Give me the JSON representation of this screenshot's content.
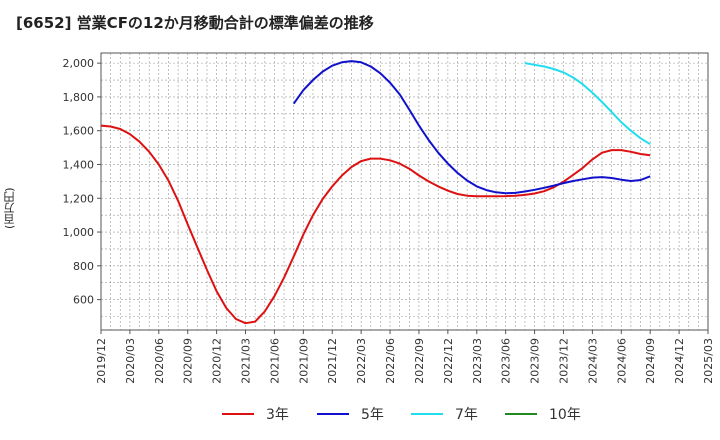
{
  "chart_data": {
    "type": "line",
    "title": "[6652]  営業CFの12か月移動合計の標準偏差の推移",
    "ylabel": "(百万円)",
    "ylim": [
      420,
      2060
    ],
    "y_ticks": [
      "600",
      "800",
      "1,000",
      "1,200",
      "1,400",
      "1,600",
      "1,800",
      "2,000"
    ],
    "x_ticks": [
      "2019/12",
      "2020/03",
      "2020/06",
      "2020/09",
      "2020/12",
      "2021/03",
      "2021/06",
      "2021/09",
      "2021/12",
      "2022/03",
      "2022/06",
      "2022/09",
      "2022/12",
      "2023/03",
      "2023/06",
      "2023/09",
      "2023/12",
      "2024/03",
      "2024/06",
      "2024/09",
      "2024/12",
      "2025/03"
    ],
    "grid": true,
    "legend_position": "bottom",
    "series": [
      {
        "name": "3年",
        "color": "#dd1111",
        "x": [
          "2019/12",
          "2020/01",
          "2020/02",
          "2020/03",
          "2020/04",
          "2020/05",
          "2020/06",
          "2020/07",
          "2020/08",
          "2020/09",
          "2020/10",
          "2020/11",
          "2020/12",
          "2021/01",
          "2021/02",
          "2021/03",
          "2021/04",
          "2021/05",
          "2021/06",
          "2021/07",
          "2021/08",
          "2021/09",
          "2021/10",
          "2021/11",
          "2021/12",
          "2022/01",
          "2022/02",
          "2022/03",
          "2022/04",
          "2022/05",
          "2022/06",
          "2022/07",
          "2022/08",
          "2022/09",
          "2022/10",
          "2022/11",
          "2022/12",
          "2023/01",
          "2023/02",
          "2023/03",
          "2023/04",
          "2023/05",
          "2023/06",
          "2023/07",
          "2023/08",
          "2023/09",
          "2023/10",
          "2023/11",
          "2023/12",
          "2024/01",
          "2024/02",
          "2024/03",
          "2024/04",
          "2024/05",
          "2024/06",
          "2024/07",
          "2024/08",
          "2024/09"
        ],
        "values": [
          1630,
          1625,
          1610,
          1580,
          1535,
          1475,
          1400,
          1305,
          1185,
          1045,
          910,
          775,
          650,
          550,
          485,
          460,
          470,
          530,
          620,
          730,
          855,
          985,
          1100,
          1195,
          1270,
          1335,
          1385,
          1420,
          1435,
          1435,
          1425,
          1405,
          1375,
          1335,
          1300,
          1270,
          1245,
          1225,
          1215,
          1212,
          1212,
          1212,
          1213,
          1215,
          1220,
          1228,
          1242,
          1265,
          1298,
          1338,
          1380,
          1430,
          1470,
          1485,
          1485,
          1475,
          1462,
          1455
        ]
      },
      {
        "name": "5年",
        "color": "#1111cc",
        "x": [
          "2021/08",
          "2021/09",
          "2021/10",
          "2021/11",
          "2021/12",
          "2022/01",
          "2022/02",
          "2022/03",
          "2022/04",
          "2022/05",
          "2022/06",
          "2022/07",
          "2022/08",
          "2022/09",
          "2022/10",
          "2022/11",
          "2022/12",
          "2023/01",
          "2023/02",
          "2023/03",
          "2023/04",
          "2023/05",
          "2023/06",
          "2023/07",
          "2023/08",
          "2023/09",
          "2023/10",
          "2023/11",
          "2023/12",
          "2024/01",
          "2024/02",
          "2024/03",
          "2024/04",
          "2024/05",
          "2024/06",
          "2024/07",
          "2024/08",
          "2024/09"
        ],
        "values": [
          1760,
          1840,
          1900,
          1950,
          1985,
          2005,
          2012,
          2005,
          1980,
          1940,
          1885,
          1815,
          1725,
          1630,
          1545,
          1470,
          1405,
          1350,
          1305,
          1270,
          1248,
          1235,
          1230,
          1232,
          1240,
          1250,
          1262,
          1275,
          1290,
          1302,
          1312,
          1322,
          1325,
          1320,
          1310,
          1302,
          1308,
          1330
        ]
      },
      {
        "name": "7年",
        "color": "#22ddee",
        "x": [
          "2023/08",
          "2023/09",
          "2023/10",
          "2023/11",
          "2023/12",
          "2024/01",
          "2024/02",
          "2024/03",
          "2024/04",
          "2024/05",
          "2024/06",
          "2024/07",
          "2024/08",
          "2024/09"
        ],
        "values": [
          2000,
          1990,
          1980,
          1965,
          1945,
          1915,
          1875,
          1825,
          1770,
          1710,
          1650,
          1600,
          1555,
          1520
        ]
      },
      {
        "name": "10年",
        "color": "#228822",
        "x": [],
        "values": []
      }
    ]
  }
}
